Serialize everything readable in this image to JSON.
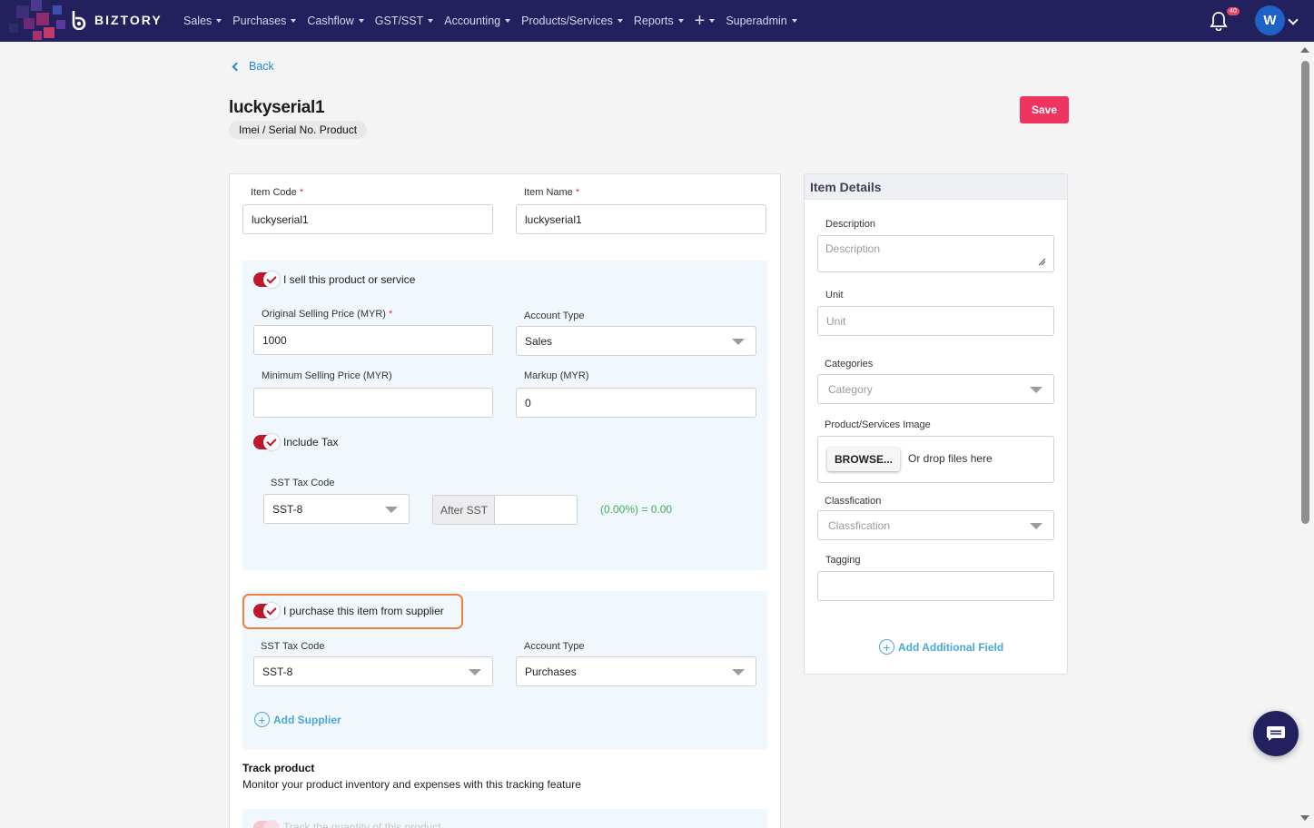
{
  "brand": {
    "name": "BIZTORY"
  },
  "nav": {
    "items": [
      {
        "label": "Sales"
      },
      {
        "label": "Purchases"
      },
      {
        "label": "Cashflow"
      },
      {
        "label": "GST/SST"
      },
      {
        "label": "Accounting"
      },
      {
        "label": "Products/Services"
      },
      {
        "label": "Reports"
      }
    ],
    "superadmin": "Superadmin",
    "notification_count": "40",
    "avatar_initial": "W"
  },
  "header": {
    "back_label": "Back",
    "title": "luckyserial1",
    "type_pill": "Imei / Serial No. Product",
    "save_label": "Save"
  },
  "form": {
    "item_code": {
      "label": "Item Code",
      "value": "luckyserial1"
    },
    "item_name": {
      "label": "Item Name",
      "value": "luckyserial1"
    },
    "sell": {
      "toggle_label": "I sell this product or service",
      "original_price_label": "Original Selling Price (MYR)",
      "original_price_value": "1000",
      "account_type_label": "Account Type",
      "account_type_value": "Sales",
      "min_price_label": "Minimum Selling Price (MYR)",
      "min_price_value": "",
      "markup_label": "Markup (MYR)",
      "markup_value": "0",
      "include_tax_label": "Include Tax",
      "sst_code_label": "SST Tax Code",
      "sst_code_value": "SST-8",
      "after_sst_label": "After SST",
      "after_sst_value": "",
      "tax_calc": "(0.00%) = 0.00"
    },
    "purchase": {
      "toggle_label": "I purchase this item from supplier",
      "sst_code_label": "SST Tax Code",
      "sst_code_value": "SST-8",
      "account_type_label": "Account Type",
      "account_type_value": "Purchases",
      "add_supplier_label": "Add Supplier"
    },
    "track": {
      "title": "Track product",
      "description": "Monitor your product inventory and expenses with this tracking feature",
      "toggle_label": "Track the quantity of this product"
    }
  },
  "item_details": {
    "title": "Item Details",
    "description_label": "Description",
    "description_placeholder": "Description",
    "unit_label": "Unit",
    "unit_placeholder": "Unit",
    "categories_label": "Categories",
    "categories_placeholder": "Category",
    "image_label": "Product/Services Image",
    "browse_label": "BROWSE...",
    "drop_text": "Or drop files here",
    "classification_label": "Classfication",
    "classification_placeholder": "Classfication",
    "tagging_label": "Tagging",
    "tagging_value": "",
    "add_field_label": "Add Additional Field"
  },
  "colors": {
    "nav_bg": "#23205e",
    "save_btn": "#ee3560",
    "toggle_on": "#c0172b",
    "link": "#4aa7dc",
    "highlight": "#f07e3d",
    "tax_green": "#3fae57"
  }
}
